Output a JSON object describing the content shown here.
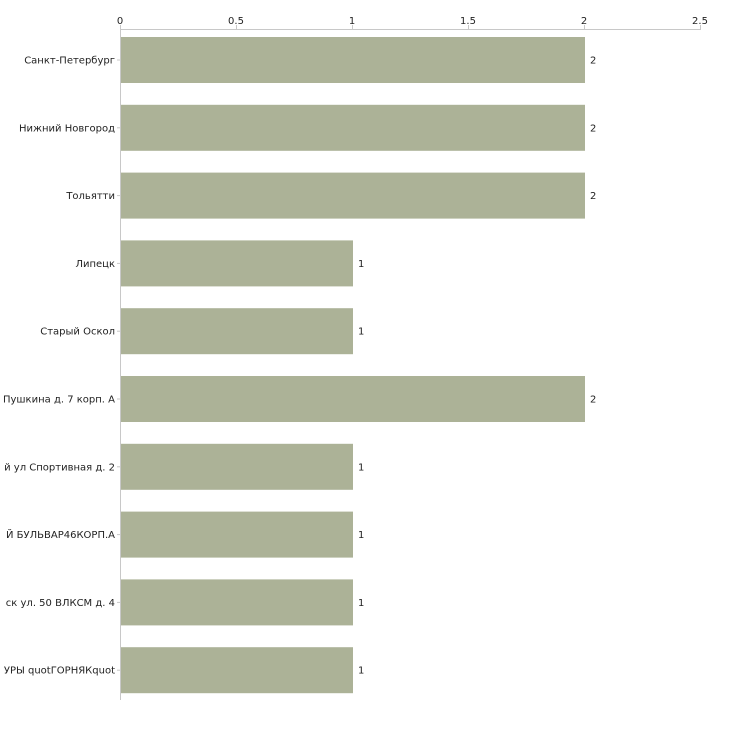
{
  "chart_data": {
    "type": "bar",
    "orientation": "horizontal",
    "categories": [
      "Санкт-Петербург",
      "Нижний Новгород",
      "Тольятти",
      "Липецк",
      "Старый Оскол",
      "Пушкина д. 7 корп. А",
      "й ул Спортивная д. 2",
      "Й БУЛЬВАР46КОРП.А",
      "ск ул. 50 ВЛКСМ д. 4",
      "УРЫ quotГОРНЯКquot"
    ],
    "values": [
      2,
      2,
      2,
      1,
      1,
      2,
      1,
      1,
      1,
      1
    ],
    "xlim": [
      0,
      2.5
    ],
    "xticks": [
      "0",
      "0.5",
      "1",
      "1.5",
      "2",
      "2.5"
    ],
    "xtick_values": [
      0,
      0.5,
      1,
      1.5,
      2,
      2.5
    ],
    "xaxis_position": "top",
    "grid": false,
    "bar_color": "#acb297",
    "axis_color": "#c8c8c8",
    "data_labels": [
      "2",
      "2",
      "2",
      "1",
      "1",
      "2",
      "1",
      "1",
      "1",
      "1"
    ]
  }
}
